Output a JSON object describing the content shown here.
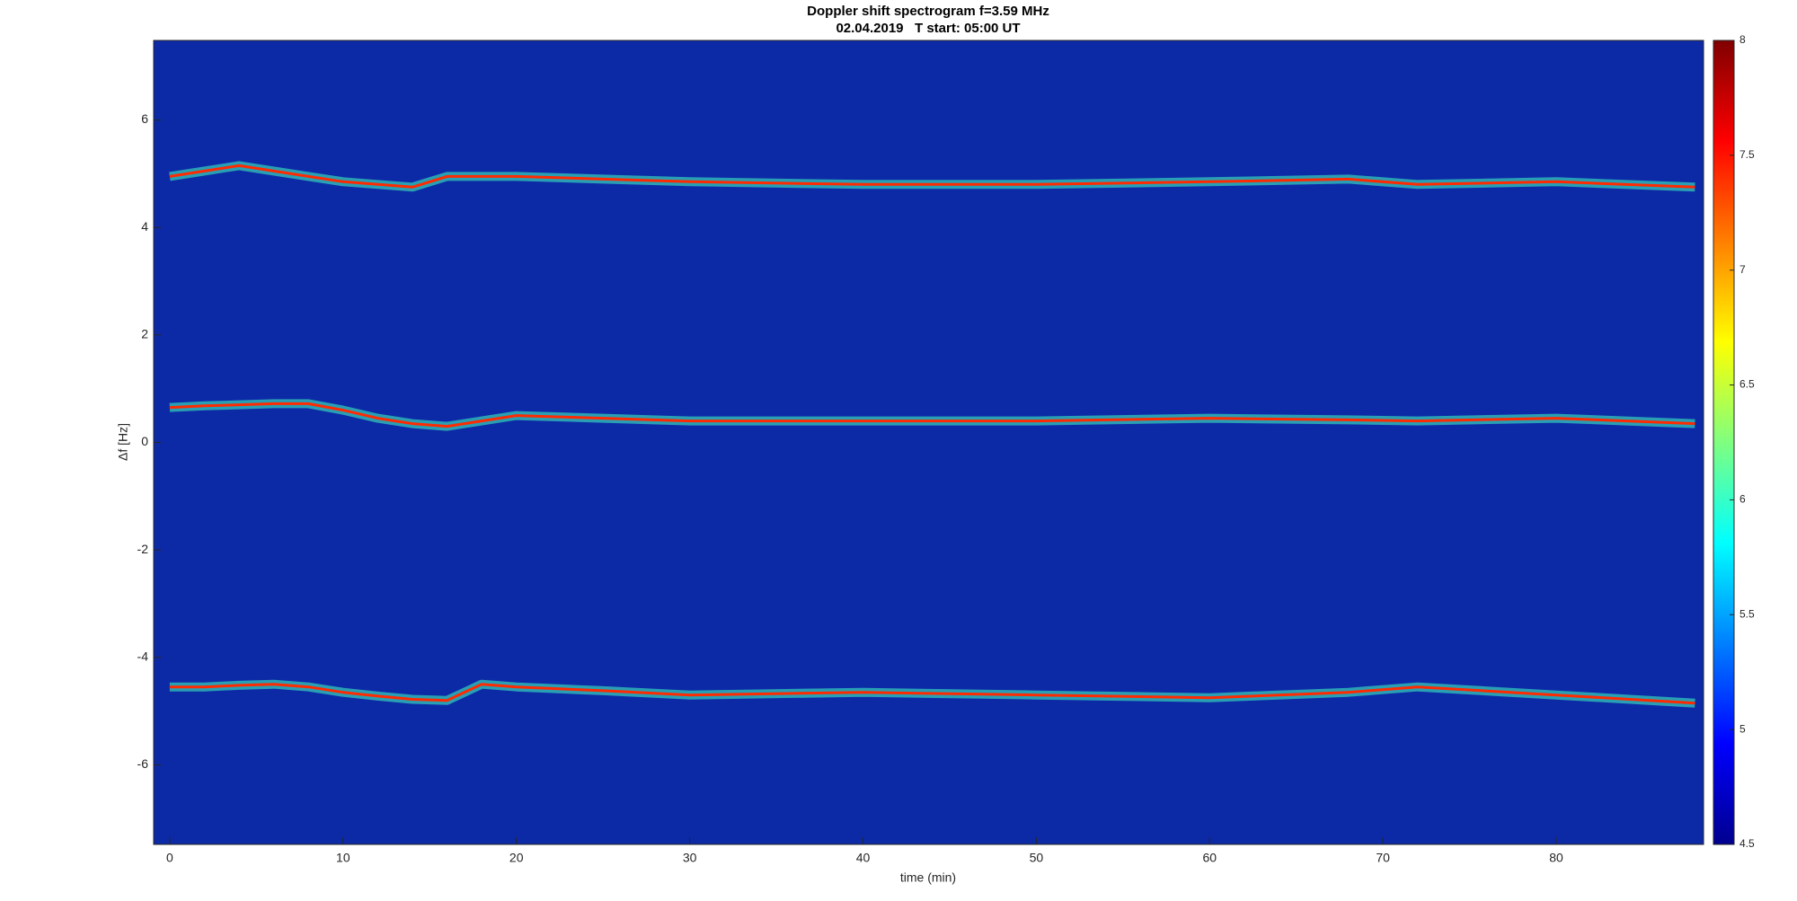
{
  "chart_data": {
    "type": "spectrogram",
    "title": "Doppler shift spectrogram f=3.59 MHz",
    "subtitle": "02.04.2019   T start: 05:00 UT",
    "x_label": "time (min)",
    "y_label": "Δf [Hz]",
    "x": [
      0,
      2,
      4,
      6,
      8,
      10,
      12,
      14,
      16,
      18,
      20,
      25,
      30,
      40,
      50,
      60,
      68,
      72,
      80,
      88
    ],
    "series": [
      {
        "color": "#ff2a00",
        "values": [
          4.95,
          5.05,
          5.15,
          5.05,
          4.95,
          4.85,
          4.8,
          4.75,
          4.95,
          4.95,
          4.95,
          4.9,
          4.85,
          4.8,
          4.8,
          4.85,
          4.9,
          4.8,
          4.85,
          4.75
        ]
      },
      {
        "color": "#ff2a00",
        "values": [
          0.65,
          0.68,
          0.7,
          0.72,
          0.72,
          0.6,
          0.45,
          0.35,
          0.3,
          0.4,
          0.5,
          0.45,
          0.4,
          0.4,
          0.4,
          0.45,
          0.42,
          0.4,
          0.45,
          0.35
        ]
      },
      {
        "color": "#ff2a00",
        "values": [
          -4.55,
          -4.55,
          -4.52,
          -4.5,
          -4.55,
          -4.65,
          -4.72,
          -4.78,
          -4.8,
          -4.5,
          -4.55,
          -4.62,
          -4.7,
          -4.65,
          -4.7,
          -4.75,
          -4.65,
          -4.55,
          -4.7,
          -4.85
        ]
      }
    ],
    "xlim": [
      -0.93,
      88.5
    ],
    "ylim": [
      -7.48,
      7.48
    ],
    "xticks": [
      0,
      10,
      20,
      30,
      40,
      50,
      60,
      70,
      80
    ],
    "yticks": [
      -6,
      -4,
      -2,
      0,
      2,
      4,
      6
    ],
    "background_color": "#0d2aa6",
    "colorbar": {
      "clim": [
        4.5,
        8
      ],
      "ticks": [
        4.5,
        5,
        5.5,
        6,
        6.5,
        7,
        7.5,
        8
      ],
      "colormap": "jet"
    }
  }
}
